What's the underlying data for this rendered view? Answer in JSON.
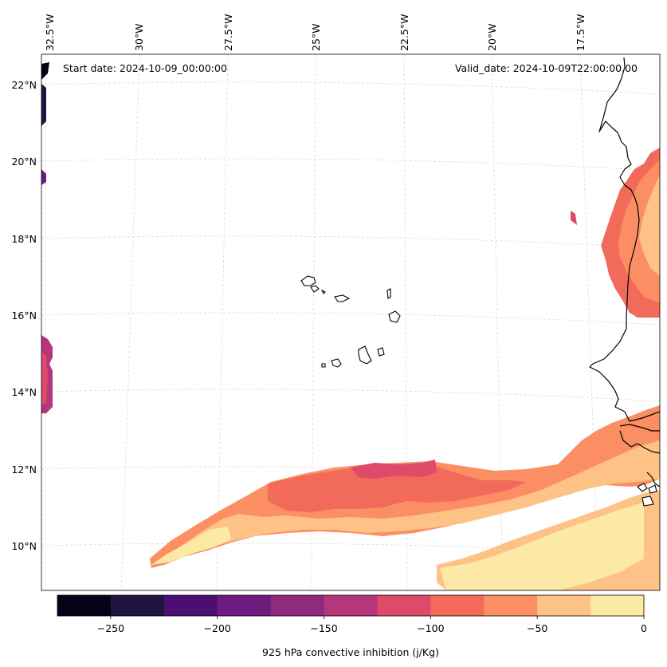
{
  "header": {
    "start_date": "Start date: 2024-10-09_00:00:00",
    "valid_date": "Valid_date: 2024-10-09T22:00:00.00"
  },
  "axes": {
    "lon_labels": [
      "32.5°W",
      "30°W",
      "27.5°W",
      "25°W",
      "22.5°W",
      "20°W",
      "17.5°W"
    ],
    "lat_labels": [
      "22°N",
      "20°N",
      "18°N",
      "16°N",
      "14°N",
      "12°N",
      "10°N"
    ]
  },
  "colorbar": {
    "label": "925 hPa convective inhibition (j/Kg)",
    "tick_labels": [
      "−250",
      "−200",
      "−150",
      "−100",
      "−50",
      "0"
    ],
    "tick_values": [
      -250,
      -200,
      -150,
      -100,
      -50,
      0
    ],
    "min": -275,
    "max": 0,
    "bins": [
      {
        "from": -275,
        "to": -250,
        "color": "#050416"
      },
      {
        "from": -250,
        "to": -225,
        "color": "#1f1442"
      },
      {
        "from": -225,
        "to": -200,
        "color": "#4b0f73"
      },
      {
        "from": -200,
        "to": -175,
        "color": "#6d1b7f"
      },
      {
        "from": -175,
        "to": -150,
        "color": "#8f2a7f"
      },
      {
        "from": -150,
        "to": -125,
        "color": "#b5367a"
      },
      {
        "from": -125,
        "to": -100,
        "color": "#dd4a6a"
      },
      {
        "from": -100,
        "to": -75,
        "color": "#f26a5a"
      },
      {
        "from": -75,
        "to": -50,
        "color": "#fb8f63"
      },
      {
        "from": -50,
        "to": -25,
        "color": "#fec186"
      },
      {
        "from": -25,
        "to": 0,
        "color": "#fde9a6"
      }
    ]
  },
  "map": {
    "land_outline_color": "#000000",
    "gridline_color": "#d8d8d8"
  }
}
